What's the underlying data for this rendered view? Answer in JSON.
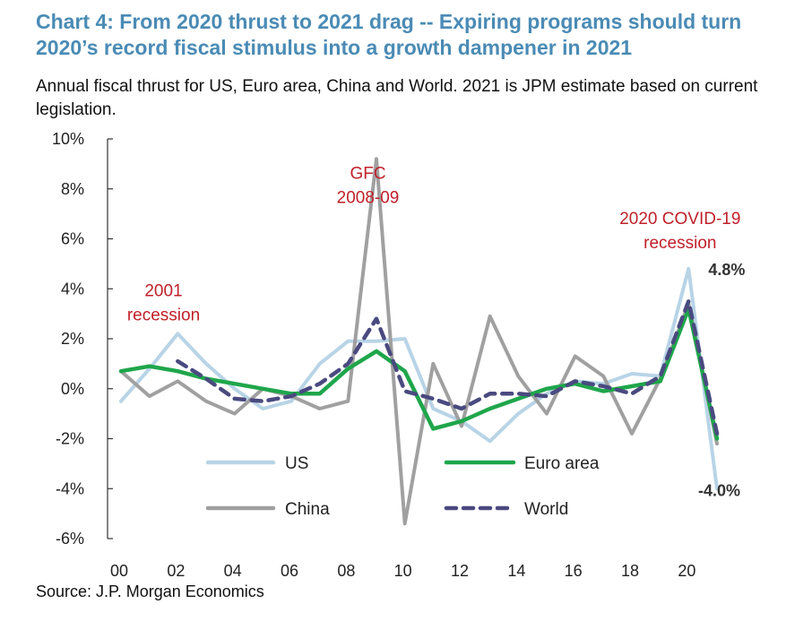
{
  "title": "Chart 4: From 2020 thrust to 2021 drag -- Expiring programs should turn 2020’s record fiscal stimulus into a growth dampener in 2021",
  "subtitle": "Annual fiscal thrust for US, Euro area, China and World. 2021 is JPM estimate based on current legislation.",
  "source": "Source: J.P. Morgan Economics",
  "colors": {
    "title": "#4a8bb5",
    "annotation": "#c0202a"
  },
  "chart_data": {
    "type": "line",
    "title": "Chart 4: From 2020 thrust to 2021 drag -- Expiring programs should turn 2020’s record fiscal stimulus into a growth dampener in 2021",
    "xlabel": "",
    "ylabel": "",
    "xlim": [
      2000,
      2021
    ],
    "ylim": [
      -6,
      10
    ],
    "x": [
      2000,
      2001,
      2002,
      2003,
      2004,
      2005,
      2006,
      2007,
      2008,
      2009,
      2010,
      2011,
      2012,
      2013,
      2014,
      2015,
      2016,
      2017,
      2018,
      2019,
      2020,
      2021
    ],
    "x_ticks": [
      2000,
      2002,
      2004,
      2006,
      2008,
      2010,
      2012,
      2014,
      2016,
      2018,
      2020
    ],
    "x_tick_labels": [
      "00",
      "02",
      "04",
      "06",
      "08",
      "10",
      "12",
      "14",
      "16",
      "18",
      "20"
    ],
    "y_ticks": [
      -6,
      -4,
      -2,
      0,
      2,
      4,
      6,
      8,
      10
    ],
    "y_tick_labels": [
      "-6%",
      "-4%",
      "-2%",
      "0%",
      "2%",
      "4%",
      "6%",
      "8%",
      "10%"
    ],
    "series": [
      {
        "name": "US",
        "color": "#b8d4e6",
        "dash": "solid",
        "values": [
          -0.5,
          0.8,
          2.2,
          1.0,
          0.0,
          -0.8,
          -0.5,
          1.0,
          1.9,
          1.9,
          2.0,
          -0.8,
          -1.3,
          -2.1,
          -1.0,
          -0.2,
          0.3,
          0.2,
          0.6,
          0.5,
          4.8,
          -4.0
        ]
      },
      {
        "name": "Euro area",
        "color": "#1fa64b",
        "dash": "solid",
        "values": [
          0.7,
          0.9,
          0.7,
          0.4,
          0.2,
          0.0,
          -0.2,
          -0.2,
          0.8,
          1.5,
          0.7,
          -1.6,
          -1.3,
          -0.8,
          -0.4,
          0.0,
          0.2,
          -0.1,
          0.1,
          0.3,
          3.2,
          -2.0
        ]
      },
      {
        "name": "China",
        "color": "#a0a0a0",
        "dash": "solid",
        "values": [
          0.7,
          -0.3,
          0.3,
          -0.5,
          -1.0,
          0.0,
          -0.3,
          -0.8,
          -0.5,
          9.2,
          -5.4,
          1.0,
          -1.5,
          2.9,
          0.5,
          -1.0,
          1.3,
          0.5,
          -1.8,
          0.4,
          3.4,
          -2.2
        ]
      },
      {
        "name": "World",
        "color": "#4a4a80",
        "dash": "dashed",
        "values": [
          null,
          null,
          1.1,
          0.4,
          -0.4,
          -0.5,
          -0.3,
          0.2,
          1.0,
          2.8,
          -0.1,
          -0.4,
          -0.8,
          -0.2,
          -0.2,
          -0.3,
          0.3,
          0.1,
          -0.2,
          0.5,
          3.5,
          -1.8
        ]
      }
    ],
    "legend": [
      {
        "label": "US",
        "series": "US"
      },
      {
        "label": "Euro area",
        "series": "Euro area"
      },
      {
        "label": "China",
        "series": "China"
      },
      {
        "label": "World",
        "series": "World"
      }
    ],
    "legend_placement": "bottom-center",
    "annotations": [
      {
        "lines": [
          "2001",
          "recession"
        ],
        "x": 2001.5,
        "y": 3.7
      },
      {
        "lines": [
          "GFC",
          "2008-09"
        ],
        "x": 2008.7,
        "y": 8.4
      },
      {
        "lines": [
          "2020 COVID-19",
          "recession"
        ],
        "x": 2019.7,
        "y": 6.6
      }
    ],
    "end_labels": [
      {
        "text": "4.8%",
        "x": 2020,
        "y": 4.8
      },
      {
        "text": "-4.0%",
        "x": 2021,
        "y": -4.0
      }
    ]
  }
}
